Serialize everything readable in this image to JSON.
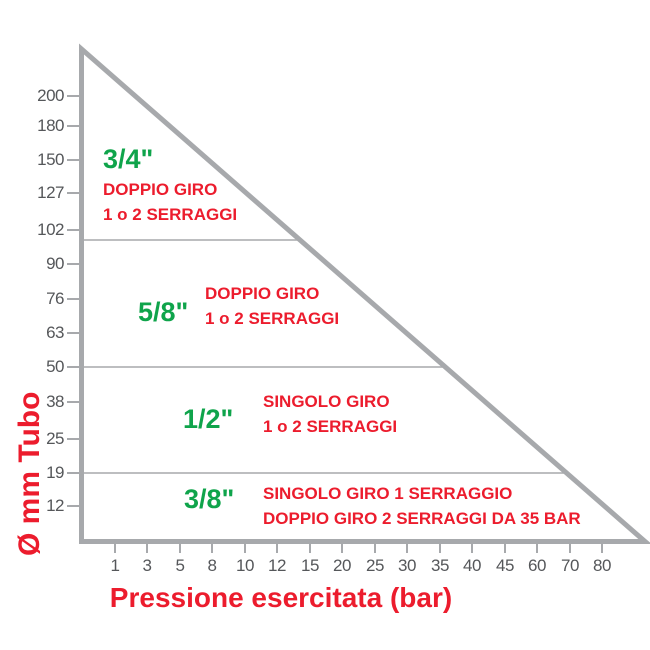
{
  "chart_data": {
    "type": "area",
    "title": "",
    "xlabel": "Pressione esercitata (bar)",
    "ylabel": "Ø mm Tubo",
    "x_ticks": [
      1,
      3,
      5,
      8,
      10,
      12,
      15,
      20,
      25,
      30,
      35,
      40,
      45,
      60,
      70,
      80
    ],
    "y_ticks": [
      200,
      180,
      150,
      127,
      102,
      90,
      76,
      63,
      50,
      38,
      25,
      19,
      12
    ],
    "xlim": [
      1,
      80
    ],
    "ylim": [
      12,
      200
    ],
    "grid": "off",
    "region_boundaries_mm": [
      102,
      50,
      19
    ],
    "regions": [
      {
        "size": "3/4\"",
        "instructions": [
          "DOPPIO GIRO",
          "1 o 2 SERRAGGI"
        ]
      },
      {
        "size": "5/8\"",
        "instructions": [
          "DOPPIO GIRO",
          "1 o 2 SERRAGGI"
        ]
      },
      {
        "size": "1/2\"",
        "instructions": [
          "SINGOLO GIRO",
          "1 o 2 SERRAGGI"
        ]
      },
      {
        "size": "3/8\"",
        "instructions": [
          "SINGOLO GIRO 1 SERRAGGIO",
          "DOPPIO GIRO 2 SERRAGGI DA 35 BAR"
        ]
      }
    ],
    "colors": {
      "accent_red": "#ec1c2d",
      "accent_green": "#0fa44b",
      "axis_gray": "#a7a9ac",
      "tick_label_gray": "#55575a"
    }
  }
}
